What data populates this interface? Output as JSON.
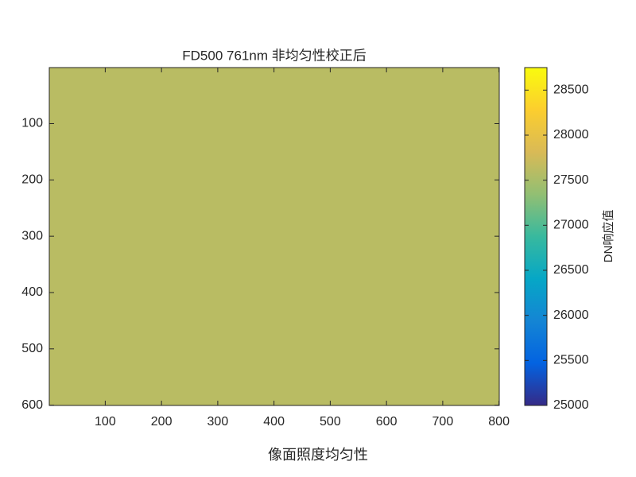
{
  "chart_data": {
    "type": "image",
    "title": "FD500 761nm 非均匀性校正后",
    "xlabel": "像面照度均匀性",
    "colorbar_label": "DN响应值",
    "value": 27600,
    "xlim": [
      0.5,
      800.5
    ],
    "xticks": [
      100,
      200,
      300,
      400,
      500,
      600,
      700,
      800
    ],
    "ylim": [
      0.5,
      600.5
    ],
    "yticks": [
      100,
      200,
      300,
      400,
      500,
      600
    ],
    "y_reversed": true,
    "clim": [
      25000,
      28750
    ],
    "cticks": [
      25000,
      25500,
      26000,
      26500,
      27000,
      27500,
      28000,
      28500
    ],
    "colormap": [
      "#352a87",
      "#0363e1",
      "#1485d4",
      "#06a7c6",
      "#38b99e",
      "#92bf73",
      "#d9ba56",
      "#fcce2e",
      "#f9fb0e"
    ]
  }
}
